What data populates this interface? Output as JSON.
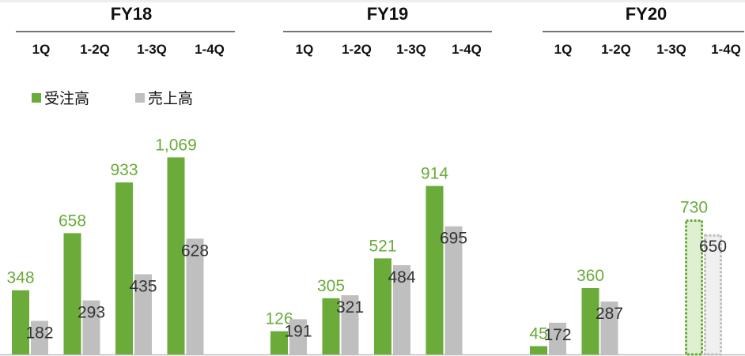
{
  "colors": {
    "orders": "#6aab3a",
    "sales": "#bfbfbf",
    "axis": "#bfbfbf",
    "order_label": "#6aab3a",
    "sales_label": "#333333"
  },
  "chart_data": {
    "type": "bar",
    "title": "",
    "legend": {
      "placement": "top-left",
      "entries": [
        "受注高",
        "売上高"
      ]
    },
    "groups": [
      {
        "name": "FY18",
        "categories": [
          "1Q",
          "1-2Q",
          "1-3Q",
          "1-4Q"
        ]
      },
      {
        "name": "FY19",
        "categories": [
          "1Q",
          "1-2Q",
          "1-3Q",
          "1-4Q"
        ]
      },
      {
        "name": "FY20",
        "categories": [
          "1Q",
          "1-2Q",
          "1-3Q",
          "1-4Q"
        ]
      }
    ],
    "series": [
      {
        "name": "受注高",
        "values": [
          [
            348,
            658,
            933,
            1069
          ],
          [
            126,
            305,
            521,
            914
          ],
          [
            45,
            360,
            null,
            730
          ]
        ],
        "labels": [
          [
            "348",
            "658",
            "933",
            "1,069"
          ],
          [
            "126",
            "305",
            "521",
            "914"
          ],
          [
            "45",
            "360",
            null,
            "730"
          ]
        ]
      },
      {
        "name": "売上高",
        "values": [
          [
            182,
            293,
            435,
            628
          ],
          [
            191,
            321,
            484,
            695
          ],
          [
            172,
            287,
            null,
            650
          ]
        ],
        "labels": [
          [
            "182",
            "293",
            "435",
            "628"
          ],
          [
            "191",
            "321",
            "484",
            "695"
          ],
          [
            "172",
            "287",
            null,
            "650"
          ]
        ]
      }
    ],
    "forecast": {
      "group": "FY20",
      "category": "1-4Q",
      "style": "dashed"
    },
    "gridlines": false,
    "y_axis_visible": false
  }
}
